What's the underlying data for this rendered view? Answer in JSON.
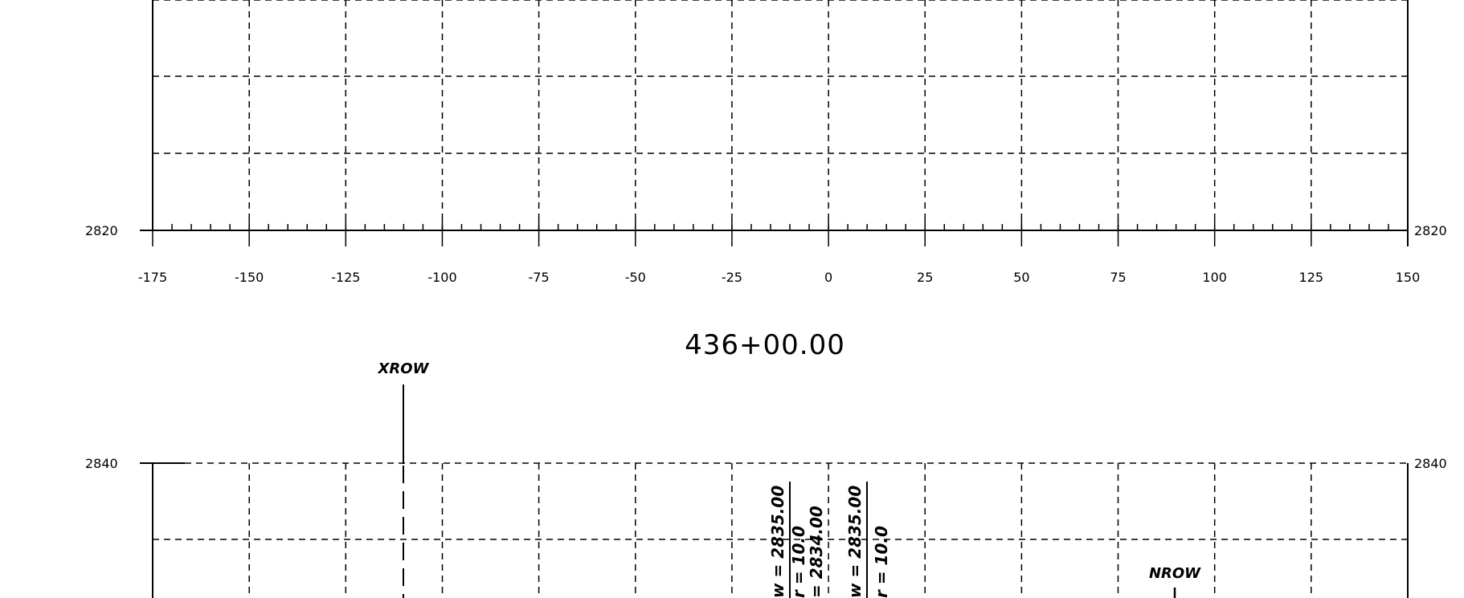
{
  "upper_section": {
    "elevation_label_left": "2820",
    "elevation_label_right": "2820",
    "offset_labels": [
      "-175",
      "-150",
      "-125",
      "-100",
      "-75",
      "-50",
      "-25",
      "0",
      "25",
      "50",
      "75",
      "100",
      "125",
      "150"
    ]
  },
  "station_label": "436+00.00",
  "lower_section": {
    "elevation_label_left": "2840",
    "elevation_label_right": "2840",
    "row_tags": {
      "left": "XROW",
      "right": "NROW"
    },
    "annotations": [
      {
        "line1": "w = 2835.00",
        "line2": "r = 10.0",
        "line3": "= 2834.00"
      },
      {
        "line1": "w = 2835.00",
        "line2": "r = 10.0"
      }
    ]
  }
}
